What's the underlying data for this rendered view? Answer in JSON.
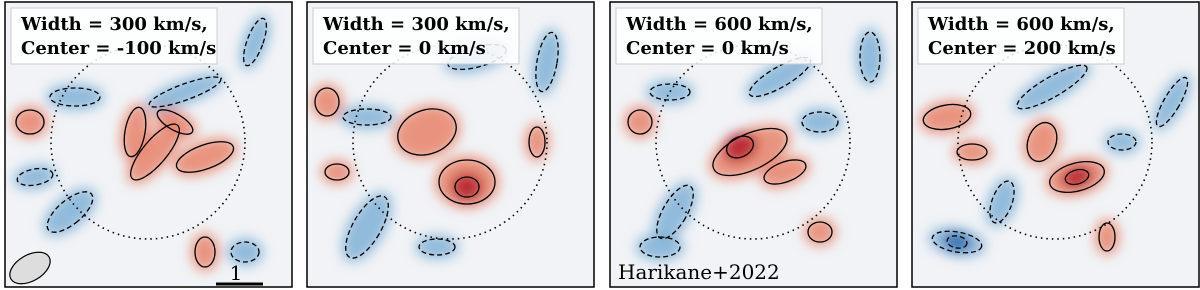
{
  "panels": [
    {
      "line1": "Width = 300 km/s,",
      "line2": "Center = -100 km/s"
    },
    {
      "line1": "Width = 300 km/s,",
      "line2": "Center = 0 km/s"
    },
    {
      "line1": "Width = 600 km/s,",
      "line2": "Center = 0 km/s"
    },
    {
      "line1": "Width = 600 km/s,",
      "line2": "Center = 200 km/s"
    }
  ],
  "scale_bar": {
    "label": "1"
  },
  "credit": "Harikane+2022"
}
